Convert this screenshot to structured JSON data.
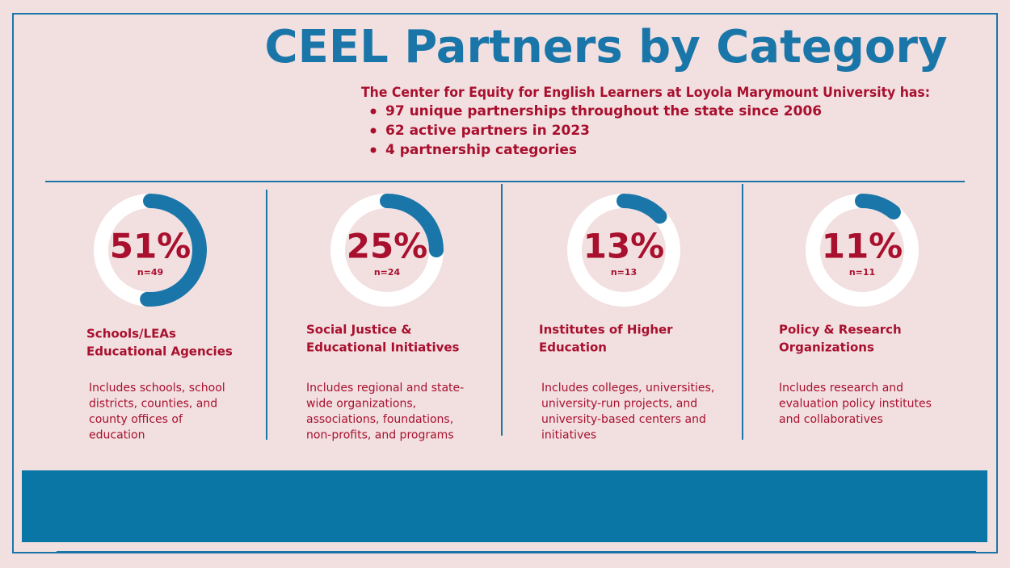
{
  "header": {
    "title": "CEEL Partners by Category",
    "intro": "The Center for Equity for English Learners at Loyola Marymount University has:",
    "bullets": [
      "97 unique partnerships throughout the state since 2006",
      "62 active partners in 2023",
      "4 partnership categories"
    ]
  },
  "panels": [
    {
      "value": 51,
      "value_label": "51%",
      "n_label": "n=49",
      "title": [
        "Schools/LEAs",
        "Educational Agencies"
      ],
      "description": [
        "Includes schools, school",
        "districts, counties, and",
        "county offices of",
        "education"
      ]
    },
    {
      "value": 25,
      "value_label": "25%",
      "n_label": "n=24",
      "title": [
        "Social Justice &",
        "Educational Initiatives"
      ],
      "description": [
        "Includes regional and state-",
        "wide organizations,",
        "associations, foundations,",
        "non-profits, and programs"
      ]
    },
    {
      "value": 13,
      "value_label": "13%",
      "n_label": "n=13",
      "title": [
        "Institutes of Higher",
        "Education"
      ],
      "description": [
        "Includes colleges, universities,",
        "university-run projects, and",
        "university-based centers and",
        "initiatives"
      ]
    },
    {
      "value": 11,
      "value_label": "11%",
      "n_label": "n=11",
      "title": [
        "Policy & Research",
        "Organizations"
      ],
      "description": [
        "Includes research and",
        "evaluation policy institutes",
        "and collaboratives"
      ]
    }
  ]
}
